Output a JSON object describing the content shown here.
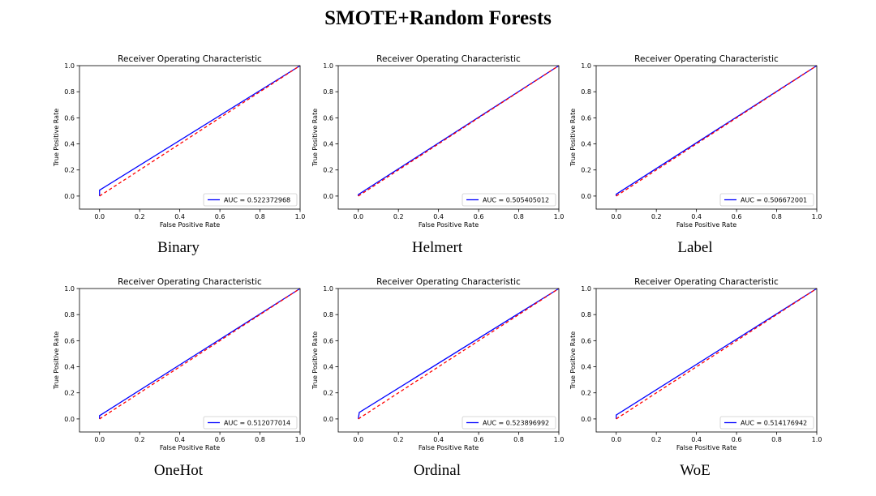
{
  "title": "SMOTE+Random Forests",
  "chart_data": [
    {
      "type": "line",
      "caption": "Binary",
      "title": "Receiver Operating Characteristic",
      "xlabel": "False Positive Rate",
      "ylabel": "True Positive Rate",
      "xlim": [
        -0.1,
        1.0
      ],
      "ylim": [
        -0.1,
        1.0
      ],
      "xticks": [
        "0.0",
        "0.2",
        "0.4",
        "0.6",
        "0.8",
        "1.0"
      ],
      "yticks": [
        "0.0",
        "0.2",
        "0.4",
        "0.6",
        "0.8",
        "1.0"
      ],
      "legend_position": "lower right",
      "series": [
        {
          "name": "AUC = 0.522372968",
          "color": "#0000ff",
          "style": "solid",
          "x": [
            0,
            0,
            1
          ],
          "y": [
            0,
            0.045,
            1
          ]
        },
        {
          "color": "#ff0000",
          "style": "dashed",
          "x": [
            0,
            1
          ],
          "y": [
            0,
            1
          ]
        }
      ]
    },
    {
      "type": "line",
      "caption": "Helmert",
      "title": "Receiver Operating Characteristic",
      "xlabel": "False Positive Rate",
      "ylabel": "True Positive Rate",
      "xlim": [
        -0.1,
        1.0
      ],
      "ylim": [
        -0.1,
        1.0
      ],
      "xticks": [
        "0.0",
        "0.2",
        "0.4",
        "0.6",
        "0.8",
        "1.0"
      ],
      "yticks": [
        "0.0",
        "0.2",
        "0.4",
        "0.6",
        "0.8",
        "1.0"
      ],
      "legend_position": "lower right",
      "series": [
        {
          "name": "AUC = 0.505405012",
          "color": "#0000ff",
          "style": "solid",
          "x": [
            0,
            0,
            1
          ],
          "y": [
            0,
            0.011,
            1
          ]
        },
        {
          "color": "#ff0000",
          "style": "dashed",
          "x": [
            0,
            1
          ],
          "y": [
            0,
            1
          ]
        }
      ]
    },
    {
      "type": "line",
      "caption": "Label",
      "title": "Receiver Operating Characteristic",
      "xlabel": "False Positive Rate",
      "ylabel": "True Positive Rate",
      "xlim": [
        -0.1,
        1.0
      ],
      "ylim": [
        -0.1,
        1.0
      ],
      "xticks": [
        "0.0",
        "0.2",
        "0.4",
        "0.6",
        "0.8",
        "1.0"
      ],
      "yticks": [
        "0.0",
        "0.2",
        "0.4",
        "0.6",
        "0.8",
        "1.0"
      ],
      "legend_position": "lower right",
      "series": [
        {
          "name": "AUC = 0.506672001",
          "color": "#0000ff",
          "style": "solid",
          "x": [
            0,
            0,
            1
          ],
          "y": [
            0,
            0.014,
            1
          ]
        },
        {
          "color": "#ff0000",
          "style": "dashed",
          "x": [
            0,
            1
          ],
          "y": [
            0,
            1
          ]
        }
      ]
    },
    {
      "type": "line",
      "caption": "OneHot",
      "title": "Receiver Operating Characteristic",
      "xlabel": "False Positive Rate",
      "ylabel": "True Positive Rate",
      "xlim": [
        -0.1,
        1.0
      ],
      "ylim": [
        -0.1,
        1.0
      ],
      "xticks": [
        "0.0",
        "0.2",
        "0.4",
        "0.6",
        "0.8",
        "1.0"
      ],
      "yticks": [
        "0.0",
        "0.2",
        "0.4",
        "0.6",
        "0.8",
        "1.0"
      ],
      "legend_position": "lower right",
      "series": [
        {
          "name": "AUC = 0.512077014",
          "color": "#0000ff",
          "style": "solid",
          "x": [
            0,
            0,
            1
          ],
          "y": [
            0,
            0.025,
            1
          ]
        },
        {
          "color": "#ff0000",
          "style": "dashed",
          "x": [
            0,
            1
          ],
          "y": [
            0,
            1
          ]
        }
      ]
    },
    {
      "type": "line",
      "caption": "Ordinal",
      "title": "Receiver Operating Characteristic",
      "xlabel": "False Positive Rate",
      "ylabel": "True Positive Rate",
      "xlim": [
        -0.1,
        1.0
      ],
      "ylim": [
        -0.1,
        1.0
      ],
      "xticks": [
        "0.0",
        "0.2",
        "0.4",
        "0.6",
        "0.8",
        "1.0"
      ],
      "yticks": [
        "0.0",
        "0.2",
        "0.4",
        "0.6",
        "0.8",
        "1.0"
      ],
      "legend_position": "lower right",
      "series": [
        {
          "name": "AUC = 0.523896992",
          "color": "#0000ff",
          "style": "solid",
          "x": [
            0,
            0.005,
            1
          ],
          "y": [
            0,
            0.05,
            1
          ]
        },
        {
          "color": "#ff0000",
          "style": "dashed",
          "x": [
            0,
            1
          ],
          "y": [
            0,
            1
          ]
        }
      ]
    },
    {
      "type": "line",
      "caption": "WoE",
      "title": "Receiver Operating Characteristic",
      "xlabel": "False Positive Rate",
      "ylabel": "True Positive Rate",
      "xlim": [
        -0.1,
        1.0
      ],
      "ylim": [
        -0.1,
        1.0
      ],
      "xticks": [
        "0.0",
        "0.2",
        "0.4",
        "0.6",
        "0.8",
        "1.0"
      ],
      "yticks": [
        "0.0",
        "0.2",
        "0.4",
        "0.6",
        "0.8",
        "1.0"
      ],
      "legend_position": "lower right",
      "series": [
        {
          "name": "AUC = 0.514176942",
          "color": "#0000ff",
          "style": "solid",
          "x": [
            0,
            0,
            1
          ],
          "y": [
            0,
            0.03,
            1
          ]
        },
        {
          "color": "#ff0000",
          "style": "dashed",
          "x": [
            0,
            1
          ],
          "y": [
            0,
            1
          ]
        }
      ]
    }
  ]
}
